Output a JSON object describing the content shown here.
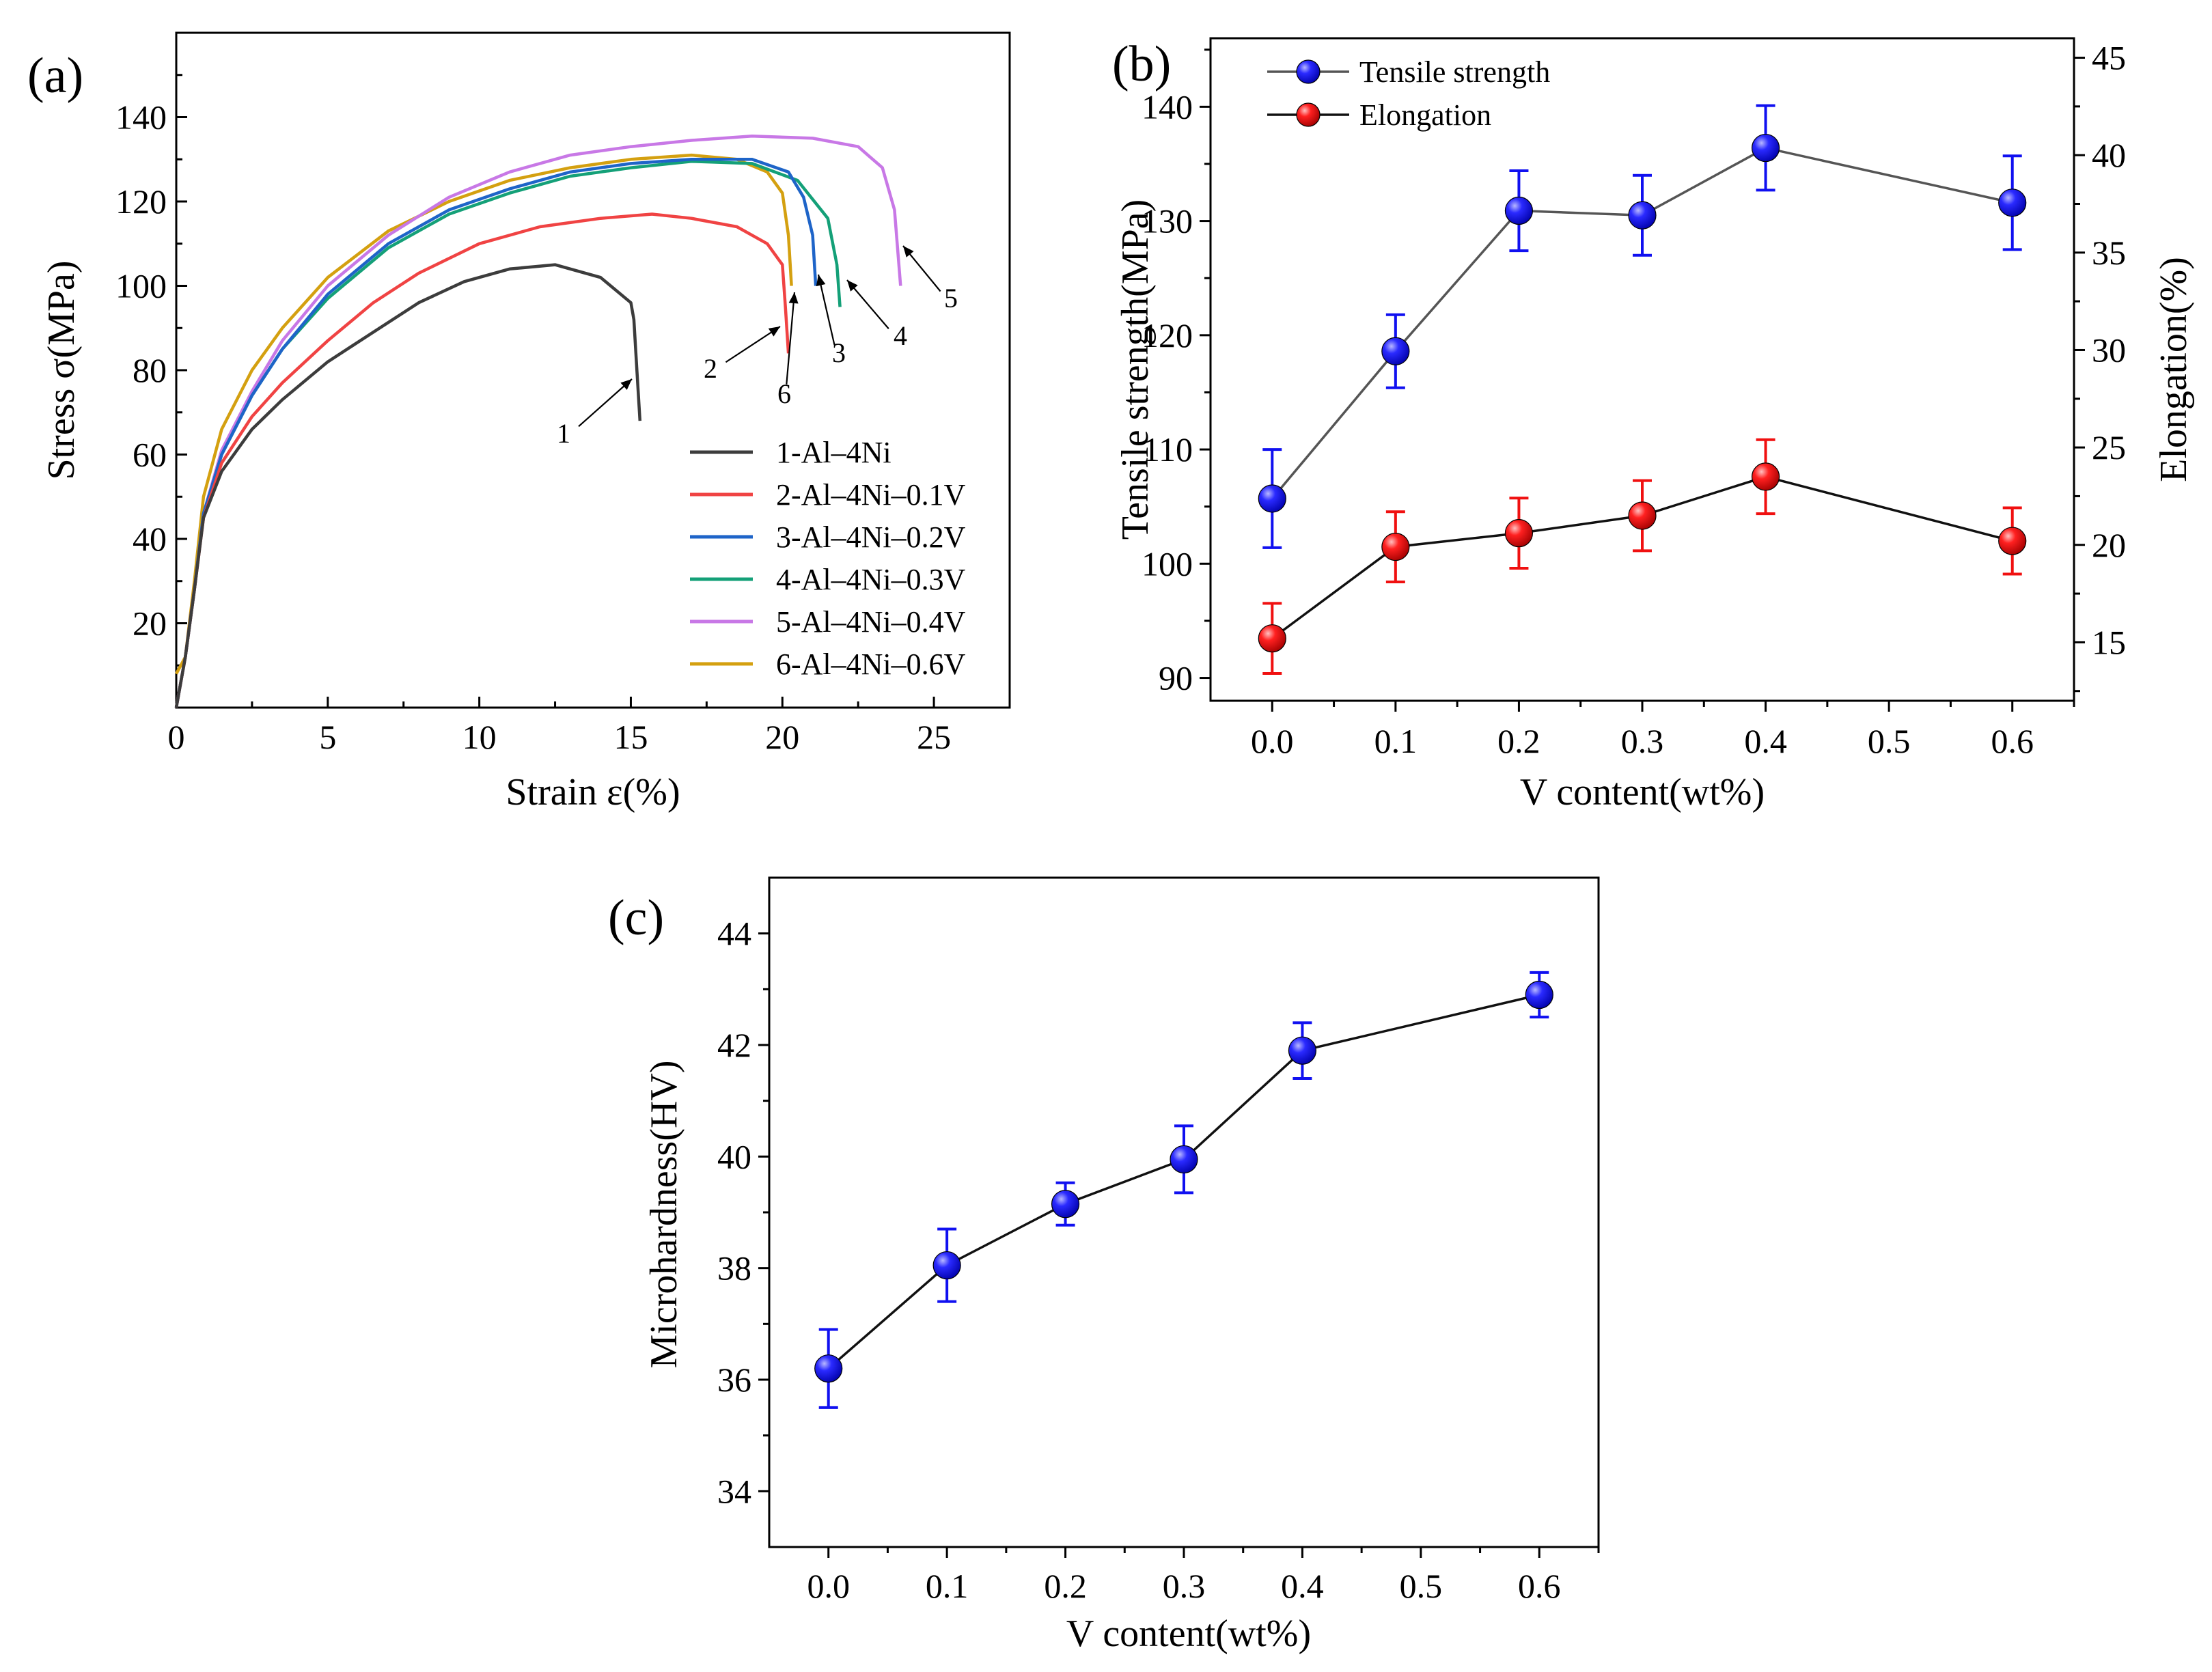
{
  "colors": {
    "axis": "#000000",
    "curve_1": "#3c3c3c",
    "curve_2": "#f04343",
    "curve_3": "#1e64c8",
    "curve_4": "#14a078",
    "curve_5": "#c878e6",
    "curve_6": "#d4a010",
    "tensile_marker": "#1010f0",
    "elongation_marker": "#f01010",
    "tensile_line": "#555555",
    "elongation_line": "#111111"
  },
  "chart_data": [
    {
      "panel_label": "(a)",
      "type": "line",
      "xlabel": "Strain ε(%)",
      "ylabel": "Stress σ(MPa)",
      "xlim": [
        0,
        27.5
      ],
      "ylim": [
        0,
        160
      ],
      "x_ticks": [
        "0",
        "5",
        "10",
        "15",
        "20",
        "25"
      ],
      "y_ticks": [
        "20",
        "40",
        "60",
        "80",
        "100",
        "120",
        "140"
      ],
      "legend_position": "bottom-right",
      "series": [
        {
          "name": "1-Al–4Ni",
          "annotation": "1",
          "color_key": "curve_1",
          "points": [
            [
              0,
              0
            ],
            [
              0.3,
              12
            ],
            [
              0.6,
              28
            ],
            [
              0.9,
              45
            ],
            [
              1.5,
              56
            ],
            [
              2.5,
              66
            ],
            [
              3.5,
              73
            ],
            [
              5,
              82
            ],
            [
              6.5,
              89
            ],
            [
              8,
              96
            ],
            [
              9.5,
              101
            ],
            [
              11,
              104
            ],
            [
              12.5,
              105
            ],
            [
              14,
              102
            ],
            [
              15,
              96
            ],
            [
              15.1,
              92
            ],
            [
              15.2,
              80
            ],
            [
              15.3,
              68
            ]
          ]
        },
        {
          "name": "2-Al–4Ni–0.1V",
          "annotation": "2",
          "color_key": "curve_2",
          "points": [
            [
              0,
              0
            ],
            [
              0.3,
              12
            ],
            [
              0.6,
              28
            ],
            [
              0.9,
              45
            ],
            [
              1.5,
              58
            ],
            [
              2.5,
              69
            ],
            [
              3.5,
              77
            ],
            [
              5,
              87
            ],
            [
              6.5,
              96
            ],
            [
              8,
              103
            ],
            [
              10,
              110
            ],
            [
              12,
              114
            ],
            [
              14,
              116
            ],
            [
              15.7,
              117
            ],
            [
              17,
              116
            ],
            [
              18.5,
              114
            ],
            [
              19.5,
              110
            ],
            [
              20,
              105
            ],
            [
              20.1,
              95
            ],
            [
              20.2,
              84
            ]
          ]
        },
        {
          "name": "3-Al–4Ni–0.2V",
          "annotation": "3",
          "color_key": "curve_3",
          "points": [
            [
              0,
              0
            ],
            [
              0.3,
              12
            ],
            [
              0.6,
              28
            ],
            [
              0.9,
              46
            ],
            [
              1.5,
              60
            ],
            [
              2.5,
              74
            ],
            [
              3.5,
              85
            ],
            [
              5,
              98
            ],
            [
              7,
              110
            ],
            [
              9,
              118
            ],
            [
              11,
              123
            ],
            [
              13,
              127
            ],
            [
              15,
              129
            ],
            [
              17,
              130
            ],
            [
              19,
              130
            ],
            [
              20.2,
              127
            ],
            [
              20.7,
              121
            ],
            [
              21,
              112
            ],
            [
              21.1,
              100
            ]
          ]
        },
        {
          "name": "4-Al–4Ni–0.3V",
          "annotation": "4",
          "color_key": "curve_4",
          "points": [
            [
              0,
              0
            ],
            [
              0.3,
              12
            ],
            [
              0.6,
              28
            ],
            [
              0.9,
              46
            ],
            [
              1.5,
              60
            ],
            [
              2.5,
              74
            ],
            [
              3.5,
              85
            ],
            [
              5,
              97
            ],
            [
              7,
              109
            ],
            [
              9,
              117
            ],
            [
              11,
              122
            ],
            [
              13,
              126
            ],
            [
              15,
              128
            ],
            [
              17,
              129.5
            ],
            [
              19,
              129
            ],
            [
              20.5,
              125
            ],
            [
              21.5,
              116
            ],
            [
              21.8,
              105
            ],
            [
              21.9,
              95
            ]
          ]
        },
        {
          "name": "5-Al–4Ni–0.4V",
          "annotation": "5",
          "color_key": "curve_5",
          "points": [
            [
              0,
              0
            ],
            [
              0.3,
              12
            ],
            [
              0.6,
              28
            ],
            [
              0.9,
              46
            ],
            [
              1.5,
              61
            ],
            [
              2.5,
              75
            ],
            [
              3.5,
              87
            ],
            [
              5,
              100
            ],
            [
              7,
              112
            ],
            [
              9,
              121
            ],
            [
              11,
              127
            ],
            [
              13,
              131
            ],
            [
              15,
              133
            ],
            [
              17,
              134.5
            ],
            [
              19,
              135.5
            ],
            [
              21,
              135
            ],
            [
              22.5,
              133
            ],
            [
              23.3,
              128
            ],
            [
              23.7,
              118
            ],
            [
              23.9,
              100
            ]
          ]
        },
        {
          "name": "6-Al–4Ni–0.6V",
          "annotation": "6",
          "color_key": "curve_6",
          "points": [
            [
              0,
              8
            ],
            [
              0.3,
              12
            ],
            [
              0.6,
              30
            ],
            [
              0.9,
              50
            ],
            [
              1.5,
              66
            ],
            [
              2.5,
              80
            ],
            [
              3.5,
              90
            ],
            [
              5,
              102
            ],
            [
              7,
              113
            ],
            [
              9,
              120
            ],
            [
              11,
              125
            ],
            [
              13,
              128
            ],
            [
              15,
              130
            ],
            [
              17,
              131
            ],
            [
              18.5,
              130
            ],
            [
              19.5,
              127
            ],
            [
              20,
              122
            ],
            [
              20.2,
              112
            ],
            [
              20.3,
              100
            ]
          ]
        }
      ]
    },
    {
      "panel_label": "(b)",
      "type": "line",
      "xlabel": "V content(wt%)",
      "ylabel": "Tensile strength(MPa)",
      "ylabel_right": "Elongation(%)",
      "xlim": [
        -0.05,
        0.65
      ],
      "ylim": [
        88,
        146
      ],
      "ylim_right": [
        12,
        46
      ],
      "x_ticks": [
        "0.0",
        "0.1",
        "0.2",
        "0.3",
        "0.4",
        "0.5",
        "0.6"
      ],
      "y_ticks": [
        "90",
        "100",
        "110",
        "120",
        "130",
        "140"
      ],
      "y_ticks_right": [
        "15",
        "20",
        "25",
        "30",
        "35",
        "40",
        "45"
      ],
      "legend_position": "top-left",
      "series": [
        {
          "name": "Tensile strength",
          "axis": "left",
          "color_key": "tensile_marker",
          "line_key": "tensile_line",
          "x": [
            0.0,
            0.1,
            0.2,
            0.3,
            0.4,
            0.6
          ],
          "y": [
            105.7,
            118.6,
            130.9,
            130.5,
            136.4,
            131.6
          ],
          "err": [
            4.3,
            3.2,
            3.5,
            3.5,
            3.7,
            4.1
          ]
        },
        {
          "name": "Elongation",
          "axis": "right",
          "color_key": "elongation_marker",
          "line_key": "elongation_line",
          "x": [
            0.0,
            0.1,
            0.2,
            0.3,
            0.4,
            0.6
          ],
          "y": [
            15.2,
            19.9,
            20.6,
            21.5,
            23.5,
            20.2
          ],
          "err": [
            1.8,
            1.8,
            1.8,
            1.8,
            1.9,
            1.7
          ]
        }
      ]
    },
    {
      "panel_label": "(c)",
      "type": "line",
      "xlabel": "V content(wt%)",
      "ylabel": "Microhardness(HV)",
      "xlim": [
        -0.05,
        0.65
      ],
      "ylim": [
        33,
        45
      ],
      "x_ticks": [
        "0.0",
        "0.1",
        "0.2",
        "0.3",
        "0.4",
        "0.5",
        "0.6"
      ],
      "y_ticks": [
        "34",
        "36",
        "38",
        "40",
        "42",
        "44"
      ],
      "series": [
        {
          "color_key": "tensile_marker",
          "line_key": "elongation_line",
          "x": [
            0.0,
            0.1,
            0.2,
            0.3,
            0.4,
            0.6
          ],
          "y": [
            36.2,
            38.05,
            39.15,
            39.95,
            41.9,
            42.9
          ],
          "err": [
            0.7,
            0.65,
            0.38,
            0.6,
            0.5,
            0.4
          ]
        }
      ]
    }
  ]
}
